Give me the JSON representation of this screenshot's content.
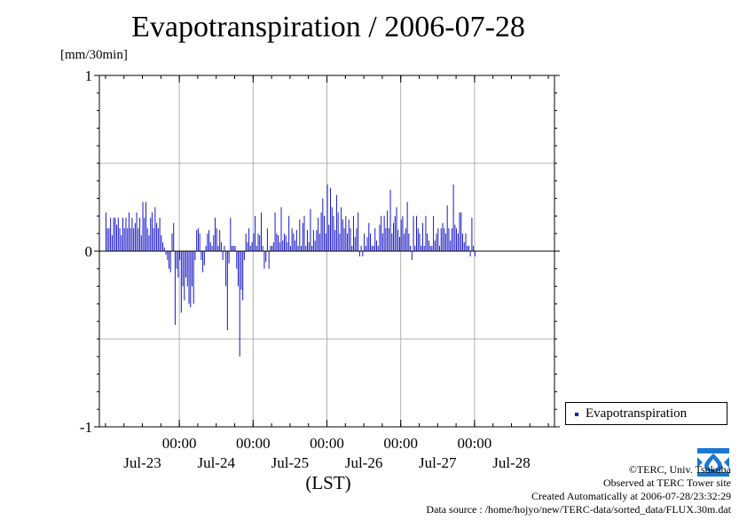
{
  "title": "Evapotranspiration / 2006-07-28",
  "unit_label": "[mm/30min]",
  "x_axis_label": "(LST)",
  "credits": {
    "copyright": "©TERC, Univ. Tsukuba",
    "site": "Observed at TERC Tower site",
    "created": "Created Automatically at 2006-07-28/23:32:29",
    "source": "Data source : /home/hojyo/new/TERC-data/sorted_data/FLUX.30m.dat"
  },
  "logo": {
    "text": "TERC",
    "color": "#1a78d0"
  },
  "colors": {
    "bar": "#1818c8",
    "grid": "#b0b0b0",
    "axis": "#000000"
  },
  "chart_data": {
    "type": "bar",
    "series": [
      {
        "name": "Evapotranspiration"
      }
    ],
    "legend_position": "right-bottom outside",
    "ylim": [
      -1,
      1
    ],
    "y_ticks": [
      -1,
      0,
      1
    ],
    "y_tick_labels": [
      "-1",
      "0",
      "1"
    ],
    "y_minor_gridlines": [
      -0.5,
      0.5
    ],
    "grid": true,
    "x_range_hours": [
      -26,
      122
    ],
    "x_tick_hours": [
      0,
      24,
      48,
      72,
      96
    ],
    "x_tick_labels": [
      "00:00",
      "00:00",
      "00:00",
      "00:00",
      "00:00"
    ],
    "x_date_labels": [
      {
        "hour": -12,
        "label": "Jul-23"
      },
      {
        "hour": 12,
        "label": "Jul-24"
      },
      {
        "hour": 36,
        "label": "Jul-25"
      },
      {
        "hour": 60,
        "label": "Jul-26"
      },
      {
        "hour": 84,
        "label": "Jul-27"
      },
      {
        "hour": 108,
        "label": "Jul-28"
      }
    ],
    "bar_interval_hours": 0.5,
    "x_start_hour": -24,
    "values": [
      0.22,
      0.13,
      0.13,
      0.19,
      0.09,
      0.19,
      0.19,
      0.15,
      0.19,
      0.13,
      0.09,
      0.19,
      0.13,
      0.19,
      0.13,
      0.22,
      0.13,
      0.19,
      0.13,
      0.16,
      0.22,
      0.13,
      0.19,
      0.09,
      0.28,
      0.19,
      0.28,
      0.13,
      0.09,
      0.19,
      0.22,
      0.13,
      0.25,
      0.16,
      0.13,
      0.19,
      0.09,
      0.05,
      0.02,
      -0.02,
      -0.05,
      -0.1,
      -0.12,
      0.1,
      0.16,
      -0.42,
      -0.1,
      -0.15,
      -0.05,
      -0.35,
      -0.2,
      -0.28,
      -0.15,
      -0.2,
      -0.3,
      -0.32,
      -0.2,
      -0.3,
      -0.05,
      0.12,
      0.13,
      0.1,
      -0.05,
      -0.12,
      -0.08,
      0.03,
      0.1,
      0.12,
      0.05,
      0.03,
      0.09,
      0.19,
      0.13,
      0.03,
      0.12,
      0.05,
      -0.05,
      0.03,
      -0.2,
      -0.45,
      -0.07,
      0.19,
      0.03,
      0.03,
      0.03,
      -0.1,
      -0.2,
      -0.6,
      -0.22,
      -0.28,
      -0.05,
      0.1,
      0.05,
      0.13,
      0.03,
      0.05,
      0.1,
      0.2,
      0.03,
      0.1,
      0.09,
      0.22,
      0.03,
      -0.1,
      -0.06,
      0.13,
      -0.1,
      0.03,
      0.03,
      0.05,
      0.22,
      0.1,
      0.09,
      0.05,
      0.25,
      0.06,
      0.1,
      0.09,
      0.05,
      0.2,
      0.03,
      0.13,
      0.1,
      0.06,
      0.12,
      0.03,
      0.18,
      0.03,
      0.16,
      0.2,
      0.03,
      0.12,
      0.05,
      0.24,
      0.03,
      0.12,
      0.06,
      0.12,
      0.19,
      0.1,
      0.22,
      0.3,
      0.2,
      0.1,
      0.38,
      0.15,
      0.36,
      0.25,
      0.2,
      0.12,
      0.32,
      0.22,
      0.1,
      0.25,
      0.18,
      0.13,
      0.2,
      0.1,
      0.18,
      0.13,
      0.03,
      0.2,
      0.08,
      0.13,
      0.22,
      -0.03,
      0.03,
      -0.03,
      0.1,
      0.03,
      0.08,
      0.16,
      0.1,
      0.03,
      0.03,
      0.13,
      0.06,
      0.03,
      0.15,
      0.2,
      0.1,
      0.2,
      0.13,
      0.23,
      0.13,
      0.35,
      0.1,
      0.16,
      0.2,
      0.25,
      0.12,
      0.08,
      0.18,
      0.2,
      0.1,
      0.13,
      0.28,
      0.1,
      0.03,
      -0.05,
      0.2,
      0.03,
      0.2,
      0.13,
      0.1,
      0.03,
      0.16,
      0.03,
      0.2,
      0.1,
      0.06,
      0.03,
      0.03,
      0.2,
      0.06,
      0.1,
      0.13,
      0.03,
      0.13,
      0.16,
      0.13,
      0.1,
      0.26,
      0.13,
      0.06,
      0.13,
      0.38,
      0.15,
      0.13,
      0.1,
      0.22,
      0.22,
      0.1,
      0.05,
      0.1,
      0.03,
      0.03,
      -0.03,
      0.19,
      0.03,
      -0.03
    ]
  }
}
